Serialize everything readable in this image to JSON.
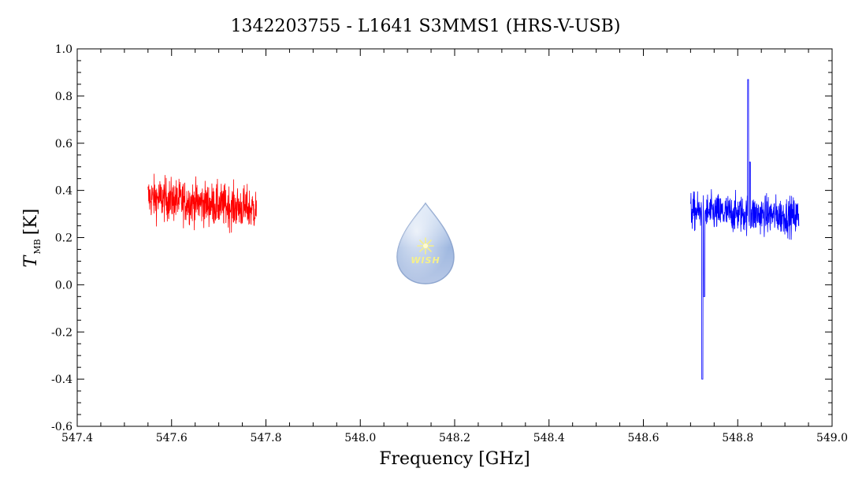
{
  "chart_data": {
    "type": "line",
    "title": "1342203755 - L1641 S3MMS1 (HRS-V-USB)",
    "xlabel": "Frequency [GHz]",
    "ylabel": {
      "symbol": "T",
      "subscript": "MB",
      "unit": "[K]"
    },
    "xlim": [
      547.4,
      549.0
    ],
    "ylim": [
      -0.6,
      1.0
    ],
    "xticks": [
      "547.4",
      "547.6",
      "547.8",
      "548.0",
      "548.2",
      "548.4",
      "548.6",
      "548.8",
      "549.0"
    ],
    "yticks": [
      "-0.6",
      "-0.4",
      "-0.2",
      "0.0",
      "0.2",
      "0.4",
      "0.6",
      "0.8",
      "1.0"
    ],
    "grid": false,
    "series": [
      {
        "color": "#ff0000",
        "x_range": [
          547.55,
          547.78
        ],
        "baseline": [
          [
            547.55,
            0.37
          ],
          [
            547.78,
            0.32
          ]
        ],
        "noise_rms": 0.045,
        "features": []
      },
      {
        "color": "#0000ff",
        "x_range": [
          548.7,
          548.93
        ],
        "baseline": [
          [
            548.7,
            0.31
          ],
          [
            548.93,
            0.29
          ]
        ],
        "noise_rms": 0.04,
        "features": [
          {
            "x": 548.725,
            "y": -0.4
          },
          {
            "x": 548.729,
            "y": -0.05
          },
          {
            "x": 548.822,
            "y": 0.87
          },
          {
            "x": 548.826,
            "y": 0.52
          }
        ]
      }
    ],
    "logo_text": "WISH"
  }
}
